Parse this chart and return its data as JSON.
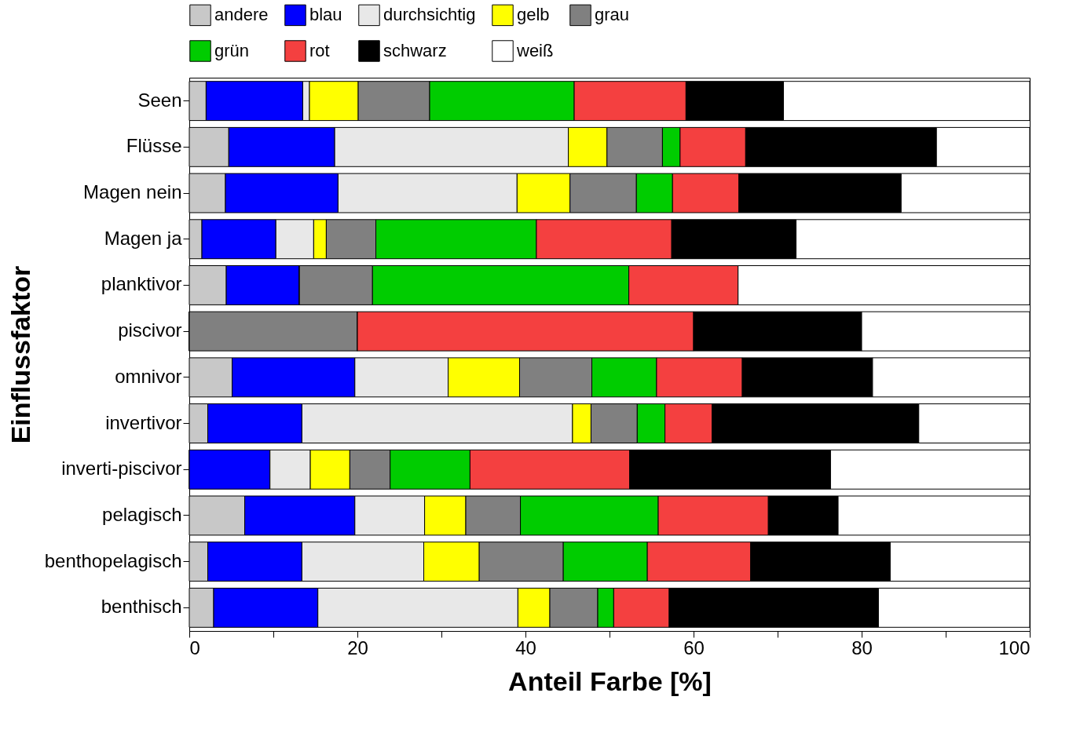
{
  "chart_data": {
    "type": "bar",
    "orientation": "horizontal",
    "stacked": true,
    "xlabel": "Anteil Farbe [%]",
    "ylabel": "Einflussfaktor",
    "legend": "top",
    "xlim": [
      0,
      100
    ],
    "xticks": [
      0,
      {
        "value": 10,
        "label": null
      },
      20,
      {
        "value": 30,
        "label": null
      },
      40,
      {
        "value": 50,
        "label": null
      },
      60,
      {
        "value": 70,
        "label": null
      },
      80,
      {
        "value": 90,
        "label": null
      },
      100
    ],
    "categories": [
      "Seen",
      "Flüsse",
      "Magen nein",
      "Magen ja",
      "planktivor",
      "piscivor",
      "omnivor",
      "invertivor",
      "inverti-piscivor",
      "pelagisch",
      "benthopelagisch",
      "benthisch"
    ],
    "series": [
      {
        "name": "andere",
        "color": "#c8c8c8",
        "values": [
          2.0,
          4.7,
          4.3,
          1.5,
          4.4,
          0,
          5.1,
          2.2,
          0,
          6.6,
          2.2,
          2.9
        ]
      },
      {
        "name": "blau",
        "color": "#0000ff",
        "values": [
          11.5,
          12.6,
          13.4,
          8.8,
          8.7,
          0,
          14.6,
          11.2,
          9.6,
          13.1,
          11.2,
          12.4
        ]
      },
      {
        "name": "durchsichtig",
        "color": "#e8e8e8",
        "values": [
          0.8,
          27.8,
          21.3,
          4.5,
          0,
          0,
          11.1,
          32.2,
          4.8,
          8.3,
          14.5,
          23.8
        ]
      },
      {
        "name": "gelb",
        "color": "#ffff00",
        "values": [
          5.8,
          4.6,
          6.3,
          1.5,
          0,
          0,
          8.5,
          2.2,
          4.7,
          4.9,
          6.6,
          3.8
        ]
      },
      {
        "name": "grau",
        "color": "#808080",
        "values": [
          8.5,
          6.6,
          7.9,
          5.9,
          8.7,
          20,
          8.6,
          5.5,
          4.8,
          6.5,
          10.0,
          5.7
        ]
      },
      {
        "name": "grün",
        "color": "#00cc00",
        "values": [
          17.2,
          2.1,
          4.3,
          19.1,
          30.5,
          0,
          7.7,
          3.3,
          9.5,
          16.4,
          10.0,
          1.9
        ]
      },
      {
        "name": "rot",
        "color": "#f44040",
        "values": [
          13.3,
          7.8,
          7.9,
          16.1,
          13.0,
          40,
          10.2,
          5.6,
          19.0,
          13.1,
          12.3,
          6.6
        ]
      },
      {
        "name": "schwarz",
        "color": "#000000",
        "values": [
          11.6,
          22.7,
          19.3,
          14.8,
          0,
          20,
          15.5,
          24.6,
          23.9,
          8.3,
          16.6,
          24.9
        ]
      },
      {
        "name": "weiß",
        "color": "#ffffff",
        "values": [
          29.3,
          11.1,
          15.3,
          27.8,
          34.7,
          20,
          18.7,
          13.2,
          23.7,
          22.8,
          16.6,
          18.0
        ]
      }
    ]
  }
}
